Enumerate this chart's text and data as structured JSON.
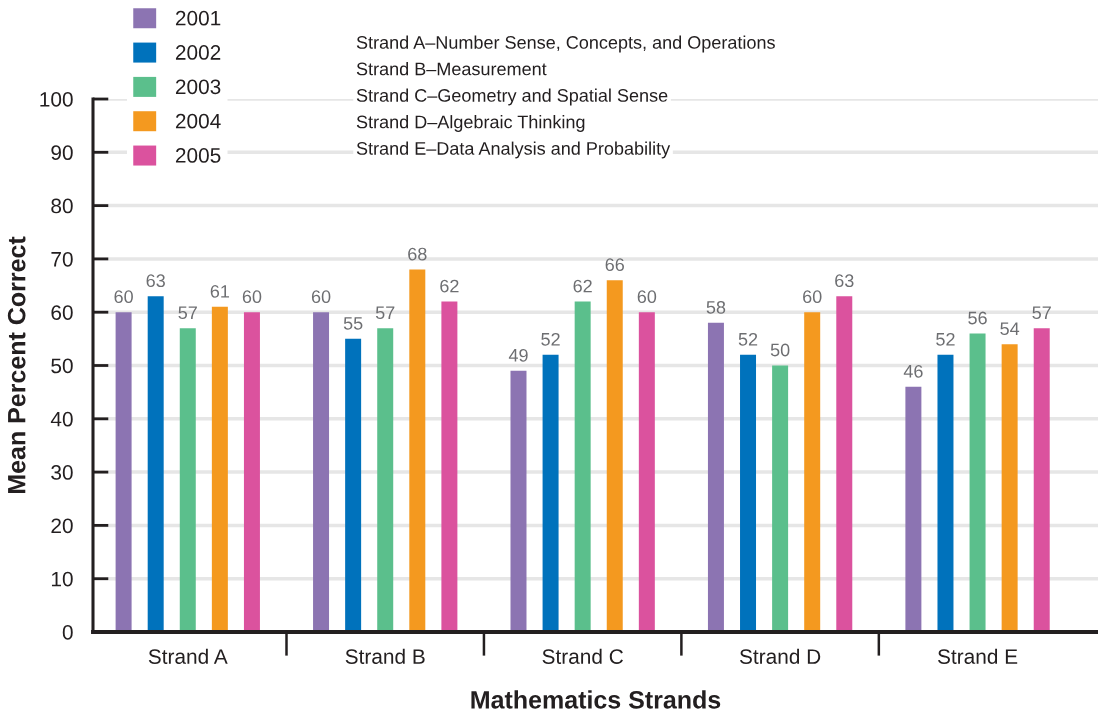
{
  "chart_data": {
    "type": "bar",
    "categories": [
      "Strand A",
      "Strand B",
      "Strand C",
      "Strand D",
      "Strand E"
    ],
    "series": [
      {
        "name": "2001",
        "color": "#8c74b2",
        "values": [
          60,
          60,
          49,
          58,
          46
        ]
      },
      {
        "name": "2002",
        "color": "#0072bc",
        "values": [
          63,
          55,
          52,
          52,
          52
        ]
      },
      {
        "name": "2003",
        "color": "#5bbf8c",
        "values": [
          57,
          57,
          62,
          50,
          56
        ]
      },
      {
        "name": "2004",
        "color": "#f4991f",
        "values": [
          61,
          68,
          66,
          60,
          54
        ]
      },
      {
        "name": "2005",
        "color": "#db529e",
        "values": [
          60,
          62,
          60,
          63,
          57
        ]
      }
    ],
    "xlabel": "Mathematics Strands",
    "ylabel": "Mean Percent Correct",
    "ylim": [
      0,
      100
    ],
    "yticks": [
      0,
      10,
      20,
      30,
      40,
      50,
      60,
      70,
      80,
      90,
      100
    ],
    "grid": "y",
    "legend": "top left",
    "data_labels": true,
    "annotations": [
      "Strand A–Number Sense, Concepts, and Operations",
      "Strand B–Measurement",
      "Strand C–Geometry and Spatial Sense",
      "Strand D–Algebraic Thinking",
      "Strand E–Data Analysis and Probability"
    ]
  }
}
